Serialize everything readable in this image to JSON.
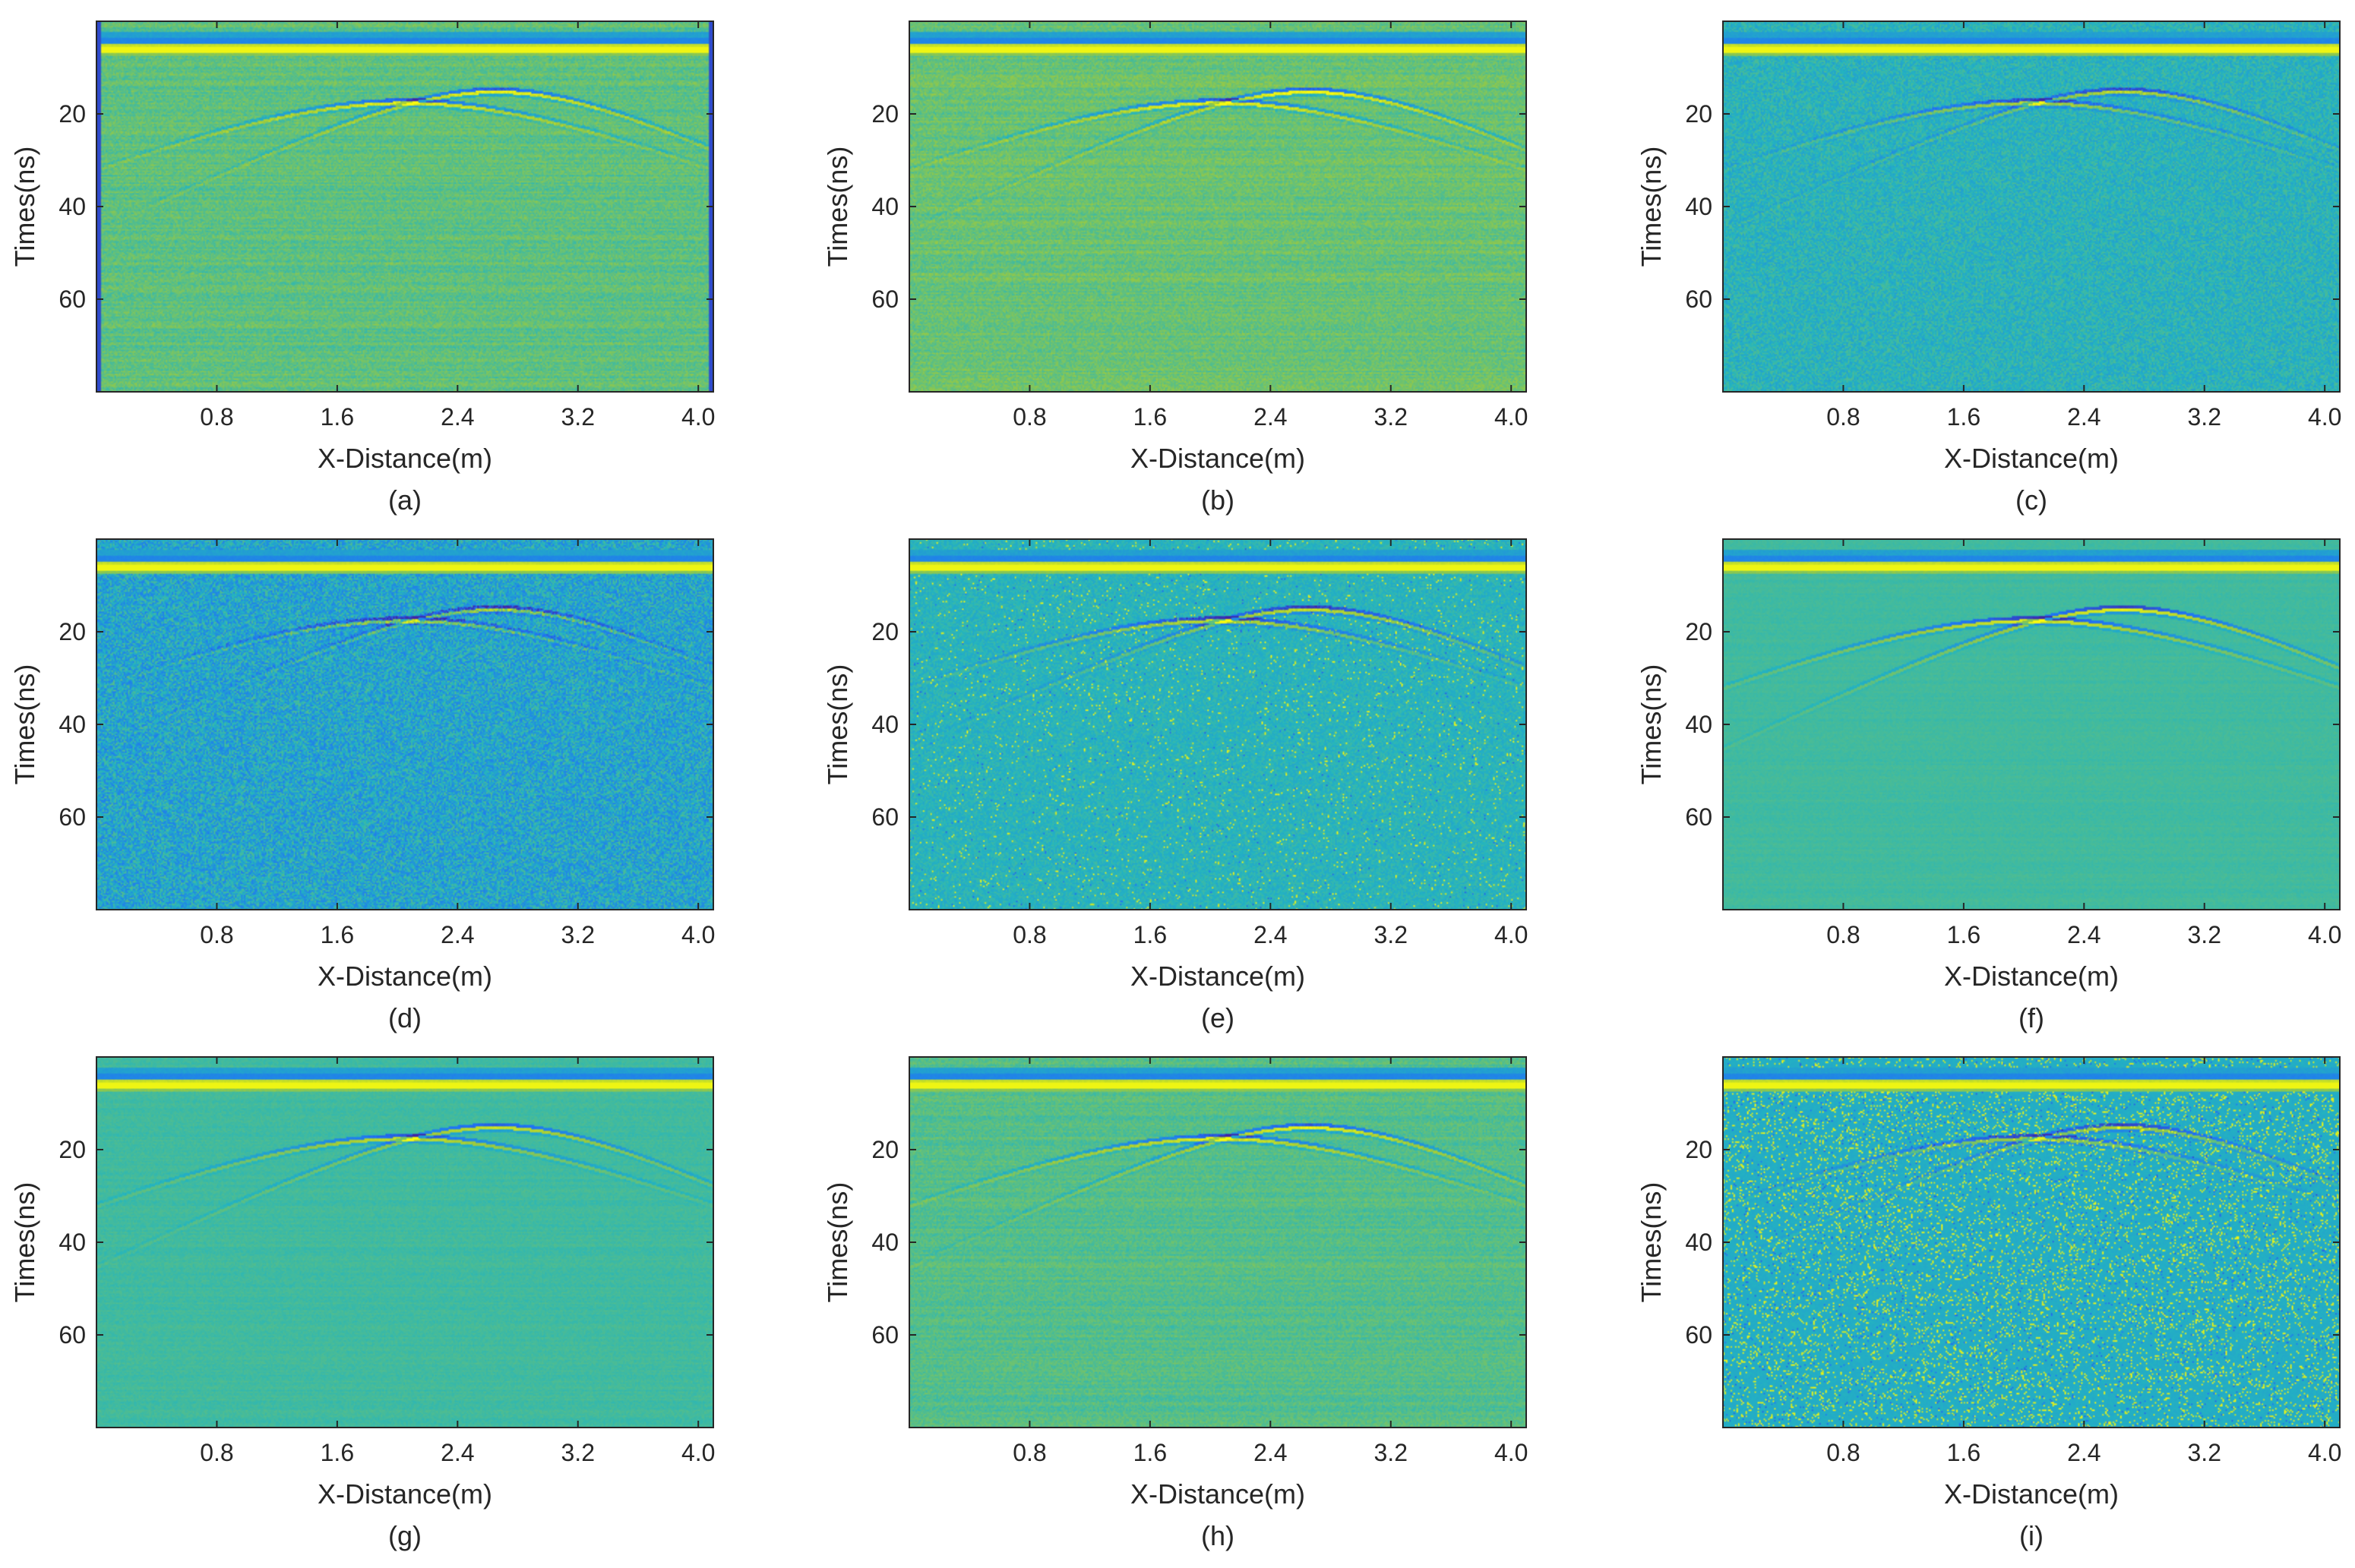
{
  "chart_data": [
    {
      "type": "heatmap",
      "panel_label": "(a)",
      "xlabel": "X-Distance(m)",
      "ylabel": "Times(ns)",
      "xlim": [
        0,
        4.1
      ],
      "ylim": [
        80,
        0
      ],
      "xticks": [
        0.8,
        1.6,
        2.4,
        3.2,
        4.0
      ],
      "xtick_labels": [
        "0.8",
        "1.6",
        "2.4",
        "3.2",
        "4.0"
      ],
      "yticks": [
        20,
        40,
        60
      ],
      "ytick_labels": [
        "20",
        "40",
        "60"
      ],
      "colormap": [
        "#3e26a8",
        "#1f74f5",
        "#24b5bf",
        "#a0cb3a",
        "#f9fb0e"
      ],
      "background_level": 0.62,
      "noise_amplitude": 0.1,
      "noise_type": "striped",
      "edge_bands": true,
      "hyperbola_strength": 0.8
    },
    {
      "type": "heatmap",
      "panel_label": "(b)",
      "xlabel": "X-Distance(m)",
      "ylabel": "Times(ns)",
      "xlim": [
        0,
        4.1
      ],
      "ylim": [
        80,
        0
      ],
      "xticks": [
        0.8,
        1.6,
        2.4,
        3.2,
        4.0
      ],
      "xtick_labels": [
        "0.8",
        "1.6",
        "2.4",
        "3.2",
        "4.0"
      ],
      "yticks": [
        20,
        40,
        60
      ],
      "ytick_labels": [
        "20",
        "40",
        "60"
      ],
      "colormap": [
        "#3e26a8",
        "#1f74f5",
        "#24b5bf",
        "#a0cb3a",
        "#f9fb0e"
      ],
      "background_level": 0.64,
      "noise_amplitude": 0.1,
      "noise_type": "striped",
      "edge_bands": false,
      "hyperbola_strength": 0.8
    },
    {
      "type": "heatmap",
      "panel_label": "(c)",
      "xlabel": "X-Distance(m)",
      "ylabel": "Times(ns)",
      "xlim": [
        0,
        4.1
      ],
      "ylim": [
        80,
        0
      ],
      "xticks": [
        0.8,
        1.6,
        2.4,
        3.2,
        4.0
      ],
      "xtick_labels": [
        "0.8",
        "1.6",
        "2.4",
        "3.2",
        "4.0"
      ],
      "yticks": [
        20,
        40,
        60
      ],
      "ytick_labels": [
        "20",
        "40",
        "60"
      ],
      "colormap": [
        "#3e26a8",
        "#1f74f5",
        "#24b5bf",
        "#a0cb3a",
        "#f9fb0e"
      ],
      "background_level": 0.5,
      "noise_amplitude": 0.08,
      "noise_type": "fine",
      "edge_bands": false,
      "hyperbola_strength": 0.7
    },
    {
      "type": "heatmap",
      "panel_label": "(d)",
      "xlabel": "X-Distance(m)",
      "ylabel": "Times(ns)",
      "xlim": [
        0,
        4.1
      ],
      "ylim": [
        80,
        0
      ],
      "xticks": [
        0.8,
        1.6,
        2.4,
        3.2,
        4.0
      ],
      "xtick_labels": [
        "0.8",
        "1.6",
        "2.4",
        "3.2",
        "4.0"
      ],
      "yticks": [
        20,
        40,
        60
      ],
      "ytick_labels": [
        "20",
        "40",
        "60"
      ],
      "colormap": [
        "#3e26a8",
        "#1f74f5",
        "#24b5bf",
        "#a0cb3a",
        "#f9fb0e"
      ],
      "background_level": 0.44,
      "noise_amplitude": 0.14,
      "noise_type": "fine",
      "edge_bands": false,
      "hyperbola_strength": 0.7
    },
    {
      "type": "heatmap",
      "panel_label": "(e)",
      "xlabel": "X-Distance(m)",
      "ylabel": "Times(ns)",
      "xlim": [
        0,
        4.1
      ],
      "ylim": [
        80,
        0
      ],
      "xticks": [
        0.8,
        1.6,
        2.4,
        3.2,
        4.0
      ],
      "xtick_labels": [
        "0.8",
        "1.6",
        "2.4",
        "3.2",
        "4.0"
      ],
      "yticks": [
        20,
        40,
        60
      ],
      "ytick_labels": [
        "20",
        "40",
        "60"
      ],
      "colormap": [
        "#3e26a8",
        "#1f74f5",
        "#24b5bf",
        "#a0cb3a",
        "#f9fb0e"
      ],
      "background_level": 0.5,
      "noise_amplitude": 0.06,
      "noise_type": "speckle",
      "speckle_density": 0.03,
      "edge_bands": false,
      "hyperbola_strength": 0.8
    },
    {
      "type": "heatmap",
      "panel_label": "(f)",
      "xlabel": "X-Distance(m)",
      "ylabel": "Times(ns)",
      "xlim": [
        0,
        4.1
      ],
      "ylim": [
        80,
        0
      ],
      "xticks": [
        0.8,
        1.6,
        2.4,
        3.2,
        4.0
      ],
      "xtick_labels": [
        "0.8",
        "1.6",
        "2.4",
        "3.2",
        "4.0"
      ],
      "yticks": [
        20,
        40,
        60
      ],
      "ytick_labels": [
        "20",
        "40",
        "60"
      ],
      "colormap": [
        "#3e26a8",
        "#1f74f5",
        "#24b5bf",
        "#a0cb3a",
        "#f9fb0e"
      ],
      "background_level": 0.56,
      "noise_amplitude": 0.03,
      "noise_type": "striped",
      "edge_bands": false,
      "hyperbola_strength": 0.9
    },
    {
      "type": "heatmap",
      "panel_label": "(g)",
      "xlabel": "X-Distance(m)",
      "ylabel": "Times(ns)",
      "xlim": [
        0,
        4.1
      ],
      "ylim": [
        80,
        0
      ],
      "xticks": [
        0.8,
        1.6,
        2.4,
        3.2,
        4.0
      ],
      "xtick_labels": [
        "0.8",
        "1.6",
        "2.4",
        "3.2",
        "4.0"
      ],
      "yticks": [
        20,
        40,
        60
      ],
      "ytick_labels": [
        "20",
        "40",
        "60"
      ],
      "colormap": [
        "#3e26a8",
        "#1f74f5",
        "#24b5bf",
        "#a0cb3a",
        "#f9fb0e"
      ],
      "background_level": 0.56,
      "noise_amplitude": 0.04,
      "noise_type": "striped",
      "edge_bands": false,
      "hyperbola_strength": 0.7
    },
    {
      "type": "heatmap",
      "panel_label": "(h)",
      "xlabel": "X-Distance(m)",
      "ylabel": "Times(ns)",
      "xlim": [
        0,
        4.1
      ],
      "ylim": [
        80,
        0
      ],
      "xticks": [
        0.8,
        1.6,
        2.4,
        3.2,
        4.0
      ],
      "xtick_labels": [
        "0.8",
        "1.6",
        "2.4",
        "3.2",
        "4.0"
      ],
      "yticks": [
        20,
        40,
        60
      ],
      "ytick_labels": [
        "20",
        "40",
        "60"
      ],
      "colormap": [
        "#3e26a8",
        "#1f74f5",
        "#24b5bf",
        "#a0cb3a",
        "#f9fb0e"
      ],
      "background_level": 0.6,
      "noise_amplitude": 0.08,
      "noise_type": "striped",
      "edge_bands": false,
      "hyperbola_strength": 0.8
    },
    {
      "type": "heatmap",
      "panel_label": "(i)",
      "xlabel": "X-Distance(m)",
      "ylabel": "Times(ns)",
      "xlim": [
        0,
        4.1
      ],
      "ylim": [
        80,
        0
      ],
      "xticks": [
        0.8,
        1.6,
        2.4,
        3.2,
        4.0
      ],
      "xtick_labels": [
        "0.8",
        "1.6",
        "2.4",
        "3.2",
        "4.0"
      ],
      "yticks": [
        20,
        40,
        60
      ],
      "ytick_labels": [
        "20",
        "40",
        "60"
      ],
      "colormap": [
        "#3e26a8",
        "#1f74f5",
        "#24b5bf",
        "#a0cb3a",
        "#f9fb0e"
      ],
      "background_level": 0.47,
      "noise_amplitude": 0.02,
      "noise_type": "speckle",
      "speckle_density": 0.1,
      "edge_bands": false,
      "hyperbola_strength": 0.7
    }
  ]
}
